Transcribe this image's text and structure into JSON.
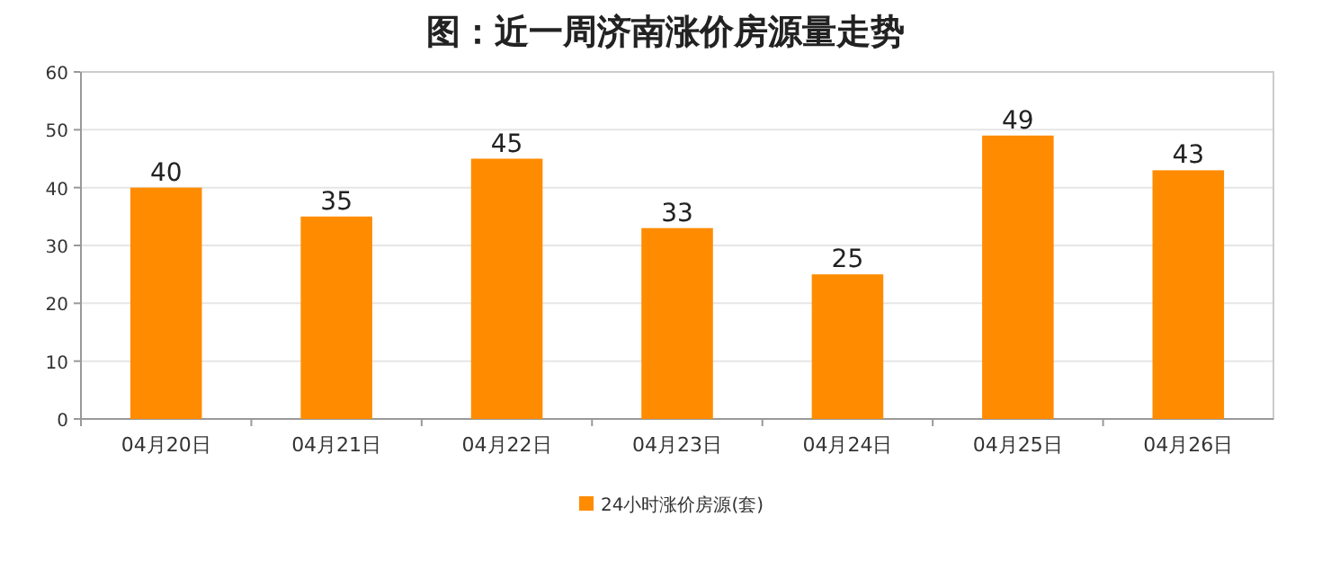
{
  "chart_data": {
    "type": "bar",
    "title": "图：近一周济南涨价房源量走势",
    "categories": [
      "04月20日",
      "04月21日",
      "04月22日",
      "04月23日",
      "04月24日",
      "04月25日",
      "04月26日"
    ],
    "series": [
      {
        "name": "24小时涨价房源(套)",
        "color": "#ff8c00",
        "values": [
          40,
          35,
          45,
          33,
          25,
          49,
          43
        ]
      }
    ],
    "ylim": [
      0,
      60
    ],
    "yticks": [
      0,
      10,
      20,
      30,
      40,
      50,
      60
    ],
    "grid": "y",
    "legend": "bottom",
    "data_labels": true
  }
}
